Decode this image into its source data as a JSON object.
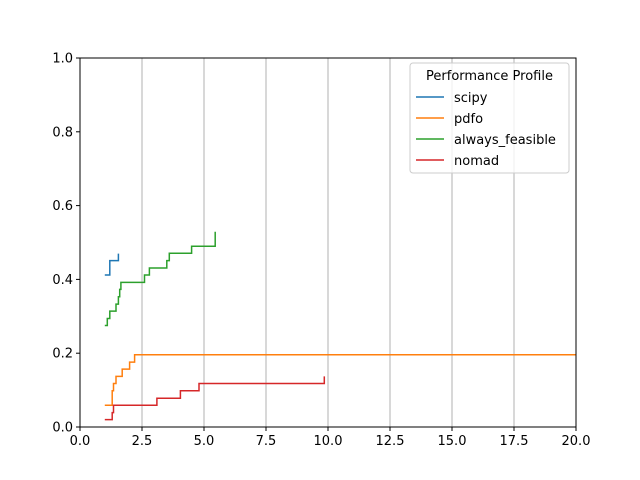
{
  "chart_data": {
    "type": "line",
    "xlim": [
      0,
      20
    ],
    "ylim": [
      0,
      1.0
    ],
    "x_ticks": [
      "0.0",
      "2.5",
      "5.0",
      "7.5",
      "10.0",
      "12.5",
      "15.0",
      "17.5",
      "20.0"
    ],
    "y_ticks": [
      "0.0",
      "0.2",
      "0.4",
      "0.6",
      "0.8",
      "1.0"
    ],
    "grid": "vertical",
    "legend_title": "Performance Profile",
    "legend_position": "top-right",
    "series": [
      {
        "name": "scipy",
        "color": "#1f77b4",
        "points": [
          [
            1.0,
            0.412
          ],
          [
            1.2,
            0.412
          ],
          [
            1.2,
            0.451
          ],
          [
            1.55,
            0.451
          ],
          [
            1.55,
            0.47
          ]
        ]
      },
      {
        "name": "pdfo",
        "color": "#ff7f0e",
        "points": [
          [
            1.0,
            0.059
          ],
          [
            1.3,
            0.059
          ],
          [
            1.3,
            0.098
          ],
          [
            1.35,
            0.098
          ],
          [
            1.35,
            0.118
          ],
          [
            1.45,
            0.118
          ],
          [
            1.45,
            0.137
          ],
          [
            1.7,
            0.137
          ],
          [
            1.7,
            0.157
          ],
          [
            2.0,
            0.157
          ],
          [
            2.0,
            0.176
          ],
          [
            2.2,
            0.176
          ],
          [
            2.2,
            0.196
          ],
          [
            20.0,
            0.196
          ]
        ]
      },
      {
        "name": "always_feasible",
        "color": "#2ca02c",
        "points": [
          [
            1.0,
            0.275
          ],
          [
            1.1,
            0.275
          ],
          [
            1.1,
            0.294
          ],
          [
            1.2,
            0.294
          ],
          [
            1.2,
            0.314
          ],
          [
            1.45,
            0.314
          ],
          [
            1.45,
            0.333
          ],
          [
            1.55,
            0.333
          ],
          [
            1.55,
            0.353
          ],
          [
            1.6,
            0.353
          ],
          [
            1.6,
            0.373
          ],
          [
            1.65,
            0.373
          ],
          [
            1.65,
            0.392
          ],
          [
            2.6,
            0.392
          ],
          [
            2.6,
            0.412
          ],
          [
            2.8,
            0.412
          ],
          [
            2.8,
            0.431
          ],
          [
            3.5,
            0.431
          ],
          [
            3.5,
            0.451
          ],
          [
            3.6,
            0.451
          ],
          [
            3.6,
            0.471
          ],
          [
            4.5,
            0.471
          ],
          [
            4.5,
            0.49
          ],
          [
            5.45,
            0.49
          ],
          [
            5.45,
            0.529
          ]
        ]
      },
      {
        "name": "nomad",
        "color": "#d62728",
        "points": [
          [
            1.0,
            0.02
          ],
          [
            1.3,
            0.02
          ],
          [
            1.3,
            0.039
          ],
          [
            1.35,
            0.039
          ],
          [
            1.35,
            0.059
          ],
          [
            3.1,
            0.059
          ],
          [
            3.1,
            0.078
          ],
          [
            4.05,
            0.078
          ],
          [
            4.05,
            0.098
          ],
          [
            4.8,
            0.098
          ],
          [
            4.8,
            0.118
          ],
          [
            9.85,
            0.118
          ],
          [
            9.85,
            0.137
          ]
        ]
      }
    ]
  }
}
